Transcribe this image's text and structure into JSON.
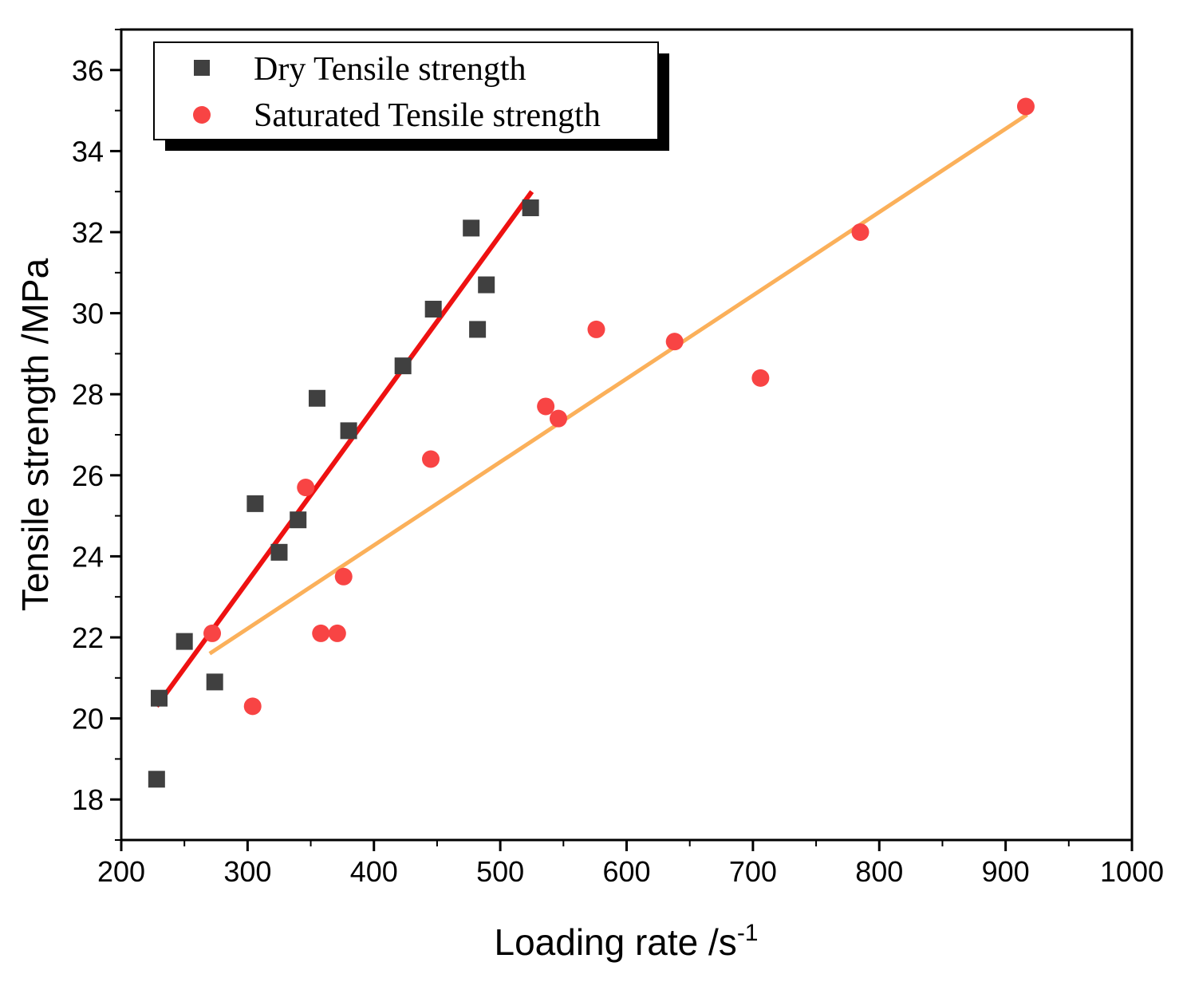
{
  "chart_data": {
    "type": "scatter",
    "xlabel": "Loading rate /s",
    "xlabel_superscript": "-1",
    "ylabel": "Tensile strength /MPa",
    "xlim": [
      200,
      1000
    ],
    "ylim": [
      17,
      37
    ],
    "x_ticks": [
      "200",
      "300",
      "400",
      "500",
      "600",
      "700",
      "800",
      "900",
      "1000"
    ],
    "y_ticks": [
      "18",
      "20",
      "22",
      "24",
      "26",
      "28",
      "30",
      "32",
      "34",
      "36"
    ],
    "legend_position": "top-left",
    "series": [
      {
        "name": "Dry Tensile strength",
        "marker": "square",
        "color": "#404040",
        "points": [
          [
            228,
            18.5
          ],
          [
            230,
            20.5
          ],
          [
            250,
            21.9
          ],
          [
            274,
            20.9
          ],
          [
            306,
            25.3
          ],
          [
            325,
            24.1
          ],
          [
            340,
            24.9
          ],
          [
            355,
            27.9
          ],
          [
            380,
            27.1
          ],
          [
            423,
            28.7
          ],
          [
            447,
            30.1
          ],
          [
            477,
            32.1
          ],
          [
            482,
            29.6
          ],
          [
            489,
            30.7
          ],
          [
            524,
            32.6
          ]
        ],
        "fit": {
          "color": "#ee1111",
          "from": [
            228,
            20.3
          ],
          "to": [
            525,
            33.0
          ]
        }
      },
      {
        "name": "Saturated Tensile strength",
        "marker": "circle",
        "color": "#f84444",
        "points": [
          [
            272,
            22.1
          ],
          [
            304,
            20.3
          ],
          [
            346,
            25.7
          ],
          [
            358,
            22.1
          ],
          [
            371,
            22.1
          ],
          [
            376,
            23.5
          ],
          [
            445,
            26.4
          ],
          [
            536,
            27.7
          ],
          [
            546,
            27.4
          ],
          [
            576,
            29.6
          ],
          [
            638,
            29.3
          ],
          [
            706,
            28.4
          ],
          [
            785,
            32.0
          ],
          [
            916,
            35.1
          ]
        ],
        "fit": {
          "color": "#fbb05a",
          "from": [
            270,
            21.6
          ],
          "to": [
            917,
            34.9
          ]
        }
      }
    ]
  }
}
